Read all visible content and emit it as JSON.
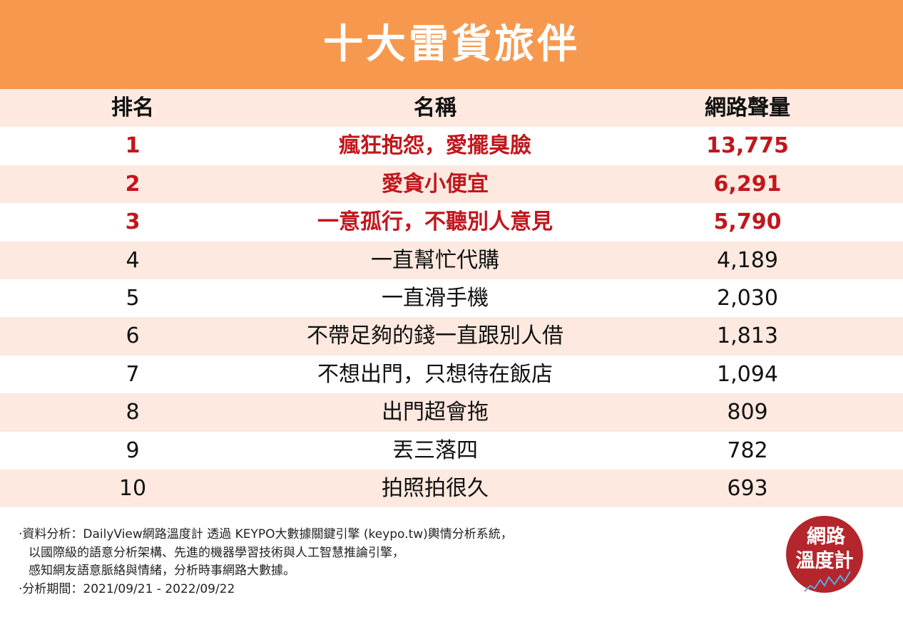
{
  "header": {
    "title": "十大雷貨旅伴"
  },
  "table": {
    "columns": [
      "排名",
      "名稱",
      "網路聲量"
    ],
    "rows": [
      [
        "1",
        "瘋狂抱怨，愛擺臭臉",
        "13,775"
      ],
      [
        "2",
        "愛貪小便宜",
        "6,291"
      ],
      [
        "3",
        "一意孤行，不聽別人意見",
        "5,790"
      ],
      [
        "4",
        "一直幫忙代購",
        "4,189"
      ],
      [
        "5",
        "一直滑手機",
        "2,030"
      ],
      [
        "6",
        "不帶足夠的錢一直跟別人借",
        "1,813"
      ],
      [
        "7",
        "不想出門，只想待在飯店",
        "1,094"
      ],
      [
        "8",
        "出門超會拖",
        "809"
      ],
      [
        "9",
        "丟三落四",
        "782"
      ],
      [
        "10",
        "拍照拍很久",
        "693"
      ]
    ]
  },
  "notes": [
    "·資料分析：DailyView網路溫度計 透過 KEYPO大數據關鍵引擎 (keypo.tw)輿情分析系統，",
    "以國際級的語意分析架構、先進的機器學習技術與人工智慧推論引擎，",
    "感知網友語意脈絡與情緒，分析時事網路大數據。",
    "·分析期間：2021/09/21 - 2022/09/22"
  ],
  "logo": {
    "lines": [
      "網路",
      "溫度計"
    ]
  }
}
